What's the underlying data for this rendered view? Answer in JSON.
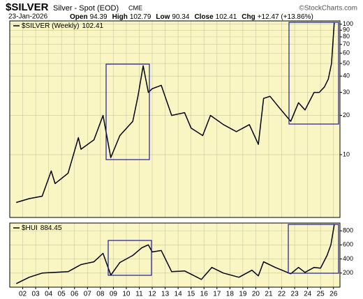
{
  "header": {
    "symbol": "$SILVER",
    "description": "Silver - Spot (EOD)",
    "exchange": "CME",
    "source": "©StockCharts.com",
    "date": "23-Jan-2026",
    "quote": [
      {
        "label": "Open",
        "value": 94.39
      },
      {
        "label": "High",
        "value": 102.79
      },
      {
        "label": "Low",
        "value": 90.34
      },
      {
        "label": "Close",
        "value": 102.41
      },
      {
        "label": "Chg",
        "value": "+12.47 (+13.86%)"
      }
    ]
  },
  "chart_data": [
    {
      "type": "line",
      "log_scale": true,
      "grid": true,
      "x": [
        2001.5,
        2002.5,
        2003.5,
        2004.2,
        2004.5,
        2005.5,
        2006.3,
        2006.5,
        2007.5,
        2008.2,
        2008.8,
        2009.5,
        2010.5,
        2010.9,
        2011.3,
        2011.7,
        2012.0,
        2012.7,
        2013.5,
        2014.5,
        2015.0,
        2015.9,
        2016.5,
        2017.5,
        2018.5,
        2019.5,
        2020.2,
        2020.6,
        2021.1,
        2021.8,
        2022.7,
        2023.3,
        2023.8,
        2024.5,
        2024.9,
        2025.3,
        2025.6,
        2025.85,
        2026.06
      ],
      "series": [
        {
          "name": "$SILVER (Weekly)",
          "color": "#000000",
          "values": [
            4.3,
            4.6,
            4.8,
            7.5,
            6.0,
            7.2,
            13.5,
            11,
            13,
            20,
            9.5,
            14,
            18,
            28,
            48,
            30,
            32,
            34,
            20,
            21,
            16,
            14,
            20,
            17,
            15,
            17,
            12,
            27,
            28,
            23,
            18,
            25,
            22,
            30,
            30,
            33,
            38,
            50,
            102.41
          ]
        }
      ],
      "xlim": [
        2001.0,
        2026.5
      ],
      "ylim": [
        3.3,
        106
      ],
      "yticks": [
        10,
        20,
        30,
        40,
        50,
        60,
        70,
        80,
        90,
        100
      ]
    },
    {
      "type": "line",
      "log_scale": false,
      "grid": true,
      "x": [
        2001.5,
        2002.5,
        2003.5,
        2004.5,
        2005.5,
        2006.5,
        2007.5,
        2008.2,
        2008.8,
        2009.5,
        2010.5,
        2011.2,
        2011.7,
        2012.0,
        2012.7,
        2013.5,
        2014.5,
        2015.8,
        2016.6,
        2017.5,
        2018.7,
        2019.7,
        2020.2,
        2020.6,
        2021.5,
        2022.7,
        2023.3,
        2023.8,
        2024.5,
        2025.0,
        2025.5,
        2025.8,
        2026.06
      ],
      "series": [
        {
          "name": "$HUI",
          "color": "#000000",
          "values": [
            50,
            140,
            200,
            210,
            220,
            320,
            360,
            480,
            170,
            350,
            450,
            560,
            600,
            500,
            520,
            220,
            230,
            110,
            280,
            200,
            140,
            240,
            160,
            360,
            280,
            190,
            280,
            210,
            280,
            270,
            450,
            600,
            884.45
          ]
        }
      ],
      "xlim": [
        2001.0,
        2026.5
      ],
      "ylim": [
        0,
        910
      ],
      "yticks": [
        200,
        400,
        600,
        800
      ],
      "xticks": [
        {
          "value": 2002,
          "label": "02"
        },
        {
          "value": 2003,
          "label": "03"
        },
        {
          "value": 2004,
          "label": "04"
        },
        {
          "value": 2005,
          "label": "05"
        },
        {
          "value": 2006,
          "label": "06"
        },
        {
          "value": 2007,
          "label": "07"
        },
        {
          "value": 2008,
          "label": "08"
        },
        {
          "value": 2009,
          "label": "09"
        },
        {
          "value": 2010,
          "label": "10"
        },
        {
          "value": 2011,
          "label": "11"
        },
        {
          "value": 2012,
          "label": "12"
        },
        {
          "value": 2013,
          "label": "13"
        },
        {
          "value": 2014,
          "label": "14"
        },
        {
          "value": 2015,
          "label": "15"
        },
        {
          "value": 2016,
          "label": "16"
        },
        {
          "value": 2017,
          "label": "17"
        },
        {
          "value": 2018,
          "label": "18"
        },
        {
          "value": 2019,
          "label": "19"
        },
        {
          "value": 2020,
          "label": "20"
        },
        {
          "value": 2021,
          "label": "21"
        },
        {
          "value": 2022,
          "label": "22"
        },
        {
          "value": 2023,
          "label": "23"
        },
        {
          "value": 2024,
          "label": "24"
        },
        {
          "value": 2025,
          "label": "25"
        },
        {
          "value": 2026,
          "label": "26"
        }
      ]
    }
  ]
}
